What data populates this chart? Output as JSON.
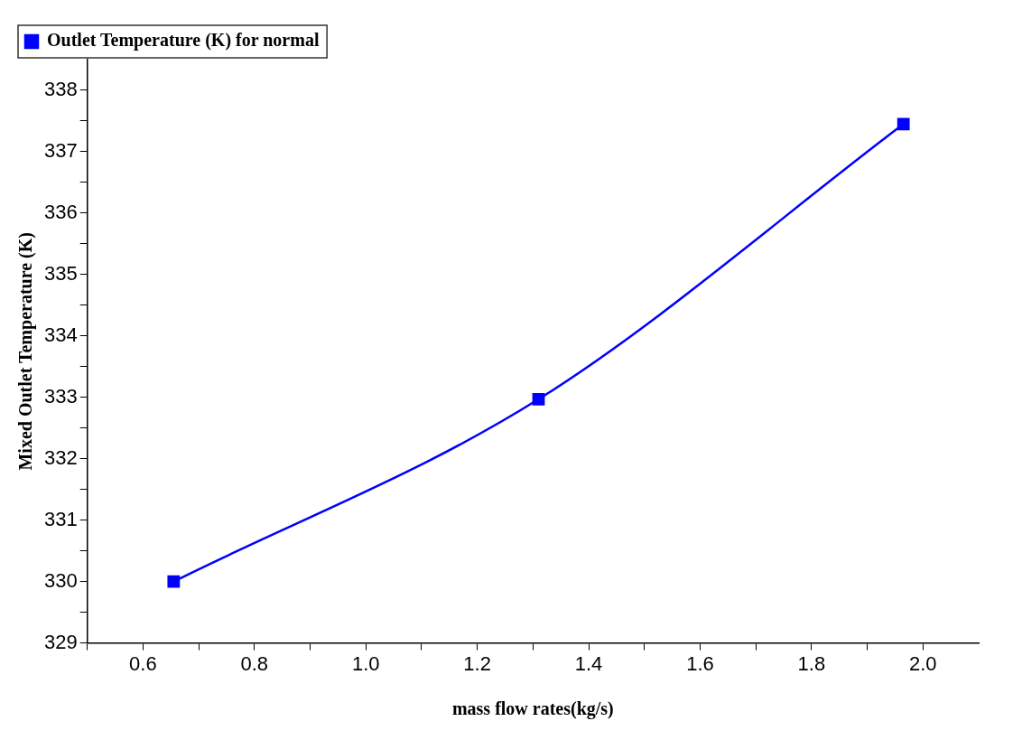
{
  "chart_data": {
    "type": "line",
    "xlabel": "mass flow rates(kg/s)",
    "ylabel": "Mixed Outlet Temperature (K)",
    "x": [
      0.655,
      1.31,
      1.965
    ],
    "series": [
      {
        "name": "Outlet Temperature (K) for normal",
        "color": "#0000ff",
        "values": [
          330,
          332.97,
          337.45
        ]
      }
    ],
    "xlim": [
      0.5,
      2.1
    ],
    "xticks": [
      {
        "value": 0.5,
        "label": null
      },
      {
        "value": 0.6,
        "label": "0.6"
      },
      {
        "value": 0.7,
        "label": null
      },
      {
        "value": 0.8,
        "label": "0.8"
      },
      {
        "value": 0.9,
        "label": null
      },
      {
        "value": 1.0,
        "label": "1.0"
      },
      {
        "value": 1.1,
        "label": null
      },
      {
        "value": 1.2,
        "label": "1.2"
      },
      {
        "value": 1.3,
        "label": null
      },
      {
        "value": 1.4,
        "label": "1.4"
      },
      {
        "value": 1.5,
        "label": null
      },
      {
        "value": 1.6,
        "label": "1.6"
      },
      {
        "value": 1.7,
        "label": null
      },
      {
        "value": 1.8,
        "label": "1.8"
      },
      {
        "value": 1.9,
        "label": null
      },
      {
        "value": 2.0,
        "label": "2.0"
      }
    ],
    "ylim": [
      329,
      338.5
    ],
    "yticks": [
      329,
      {
        "value": 329.5,
        "label": null
      },
      330,
      {
        "value": 330.5,
        "label": null
      },
      331,
      {
        "value": 331.5,
        "label": null
      },
      332,
      {
        "value": 332.5,
        "label": null
      },
      333,
      {
        "value": 333.5,
        "label": null
      },
      334,
      {
        "value": 334.5,
        "label": null
      },
      335,
      {
        "value": 335.5,
        "label": null
      },
      336,
      {
        "value": 336.5,
        "label": null
      },
      337,
      {
        "value": 337.5,
        "label": null
      },
      338
    ],
    "grid": false,
    "legend": "top left",
    "marker": "square",
    "line_style": "solid"
  }
}
